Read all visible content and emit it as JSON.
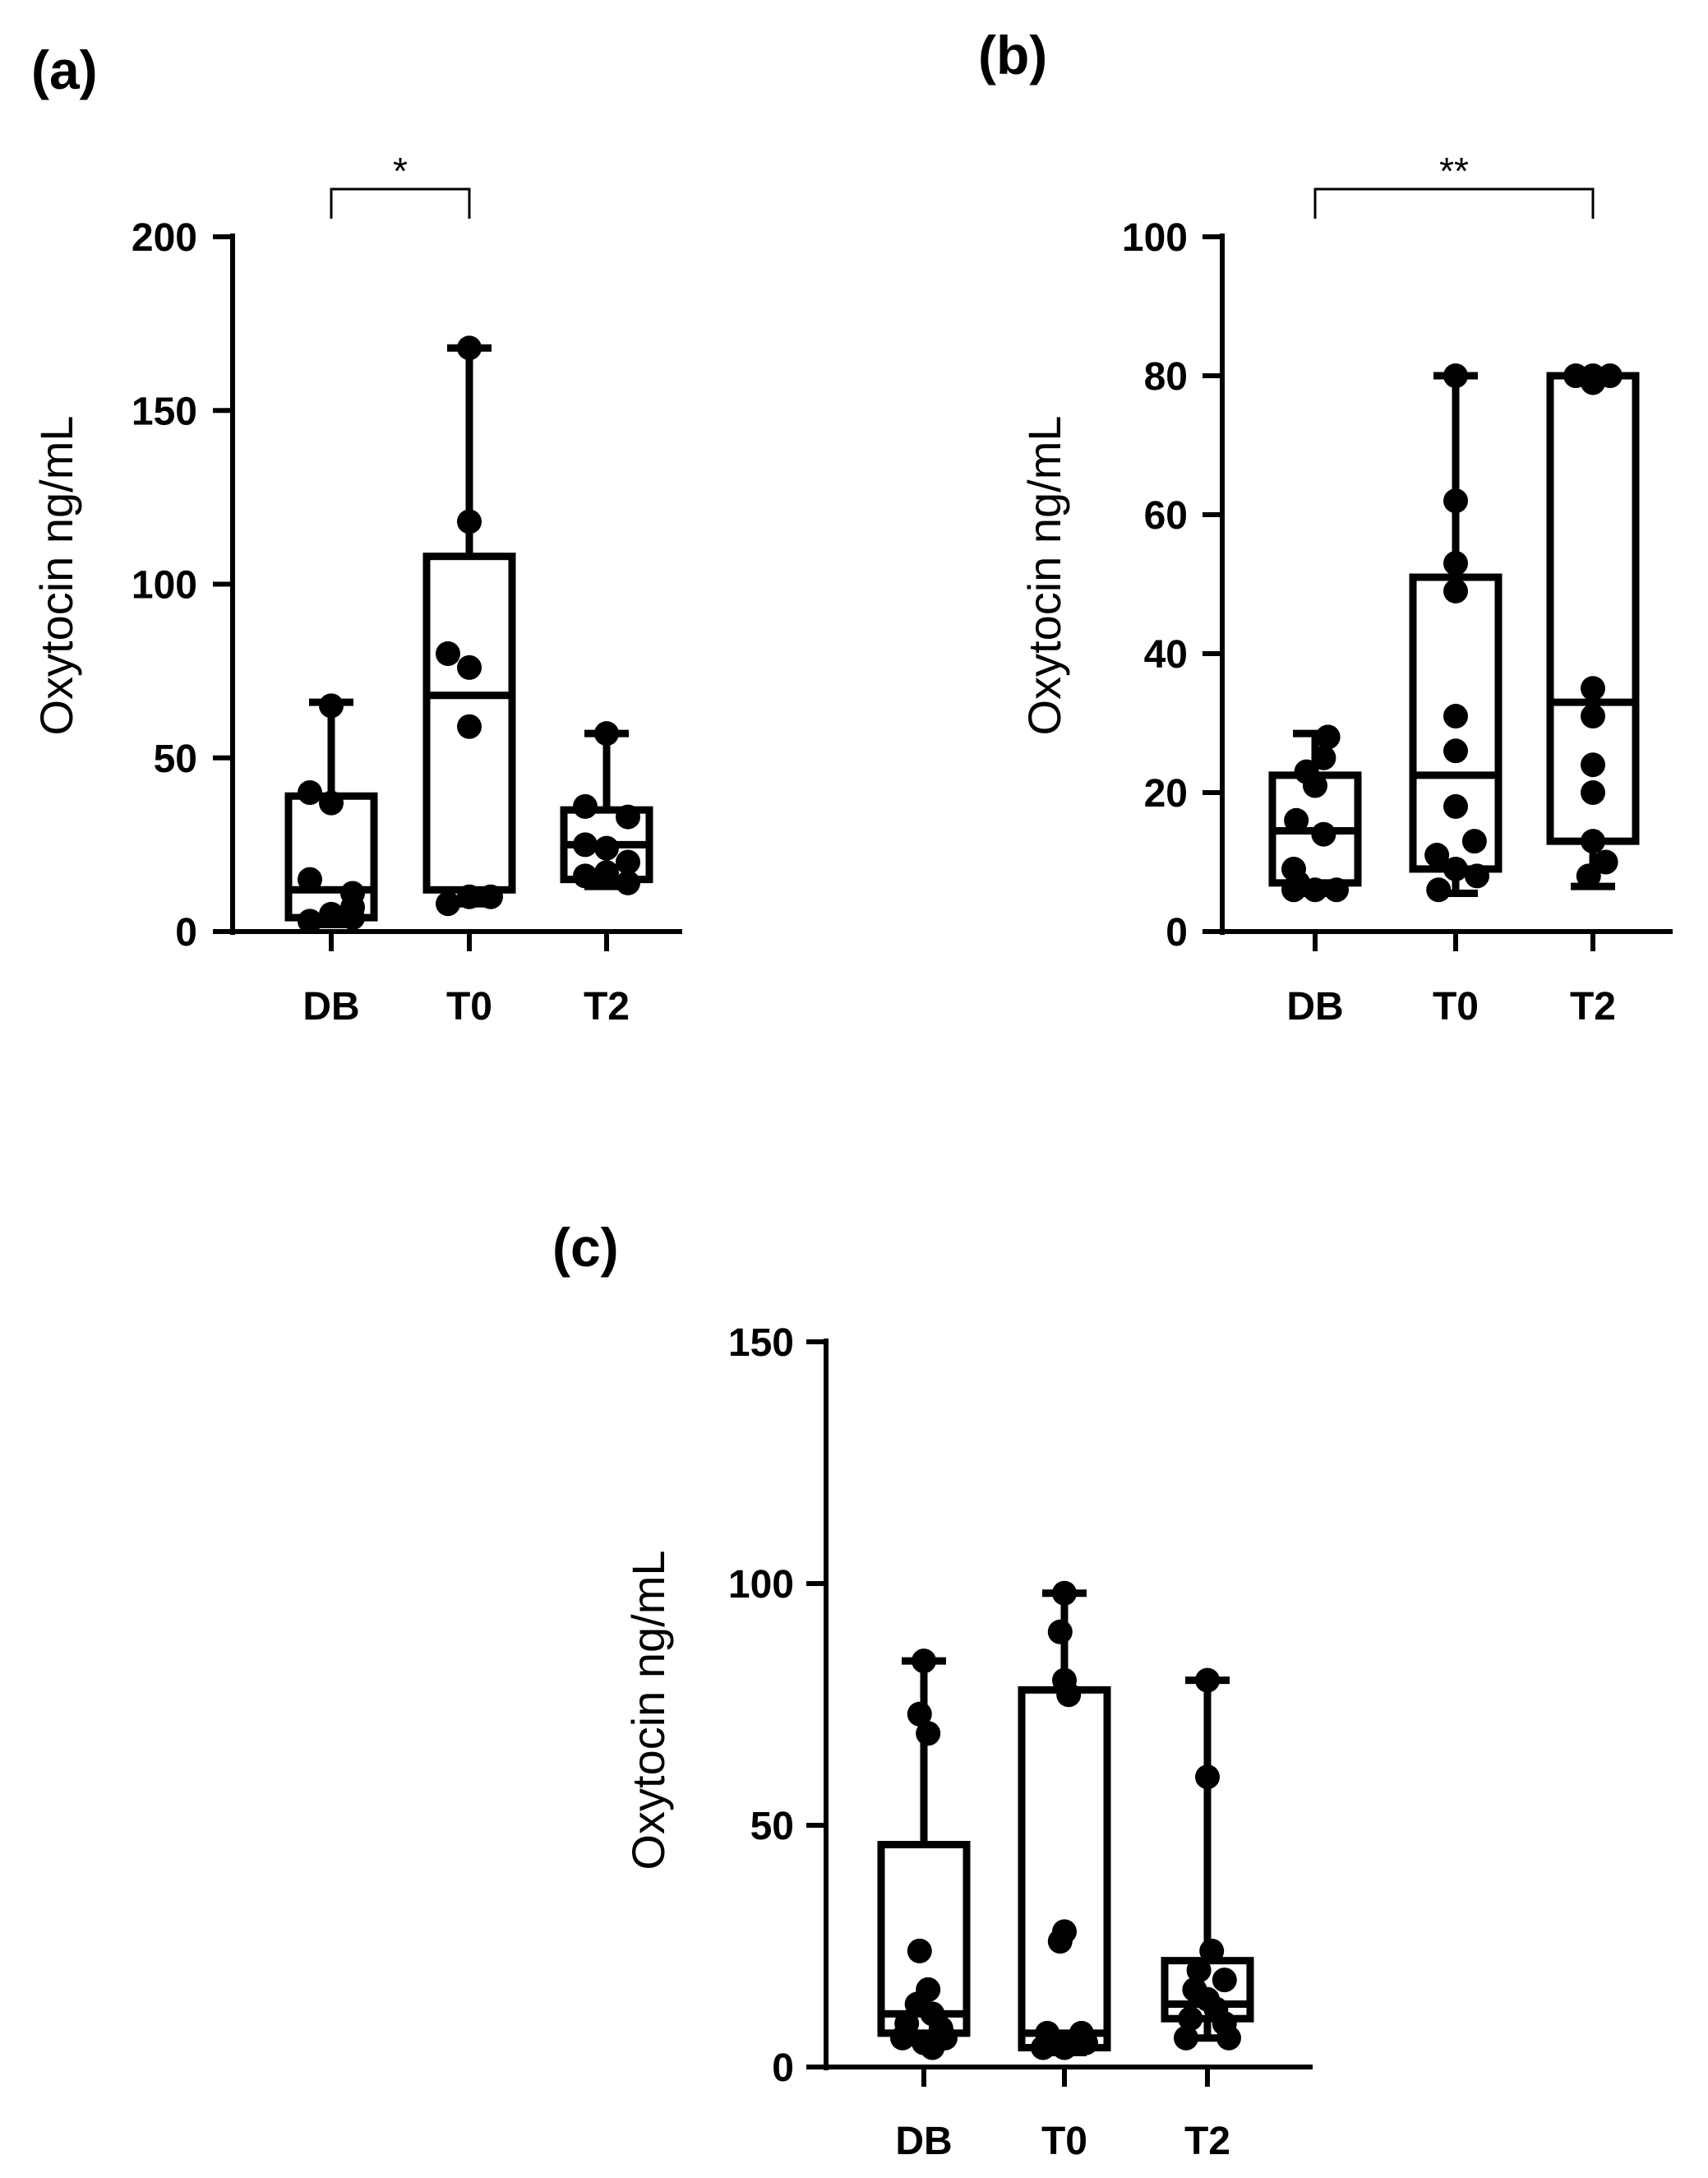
{
  "chart_data": [
    {
      "id": "a",
      "type": "box",
      "panel_label": "(a)",
      "title": "",
      "xlabel": "",
      "ylabel": "Oxytocin ng/mL",
      "ylim": [
        0,
        200
      ],
      "yticks": [
        0,
        50,
        100,
        150,
        200
      ],
      "categories": [
        "DB",
        "T0",
        "T2"
      ],
      "boxes": [
        {
          "category": "DB",
          "min": 2,
          "q1": 4,
          "median": 12,
          "q3": 39,
          "max": 66
        },
        {
          "category": "T0",
          "min": 8,
          "q1": 12,
          "median": 68,
          "q3": 108,
          "max": 168
        },
        {
          "category": "T2",
          "min": 13,
          "q1": 15,
          "median": 25,
          "q3": 35,
          "max": 57
        }
      ],
      "points": [
        {
          "category": "DB",
          "offset": 0.0,
          "value": 65
        },
        {
          "category": "DB",
          "offset": -0.25,
          "value": 40
        },
        {
          "category": "DB",
          "offset": -0.25,
          "value": 15
        },
        {
          "category": "DB",
          "offset": 0.0,
          "value": 37
        },
        {
          "category": "DB",
          "offset": 0.25,
          "value": 11
        },
        {
          "category": "DB",
          "offset": 0.25,
          "value": 7
        },
        {
          "category": "DB",
          "offset": -0.25,
          "value": 3
        },
        {
          "category": "DB",
          "offset": 0.0,
          "value": 5
        },
        {
          "category": "DB",
          "offset": 0.25,
          "value": 4
        },
        {
          "category": "T0",
          "offset": 0.0,
          "value": 168
        },
        {
          "category": "T0",
          "offset": 0.0,
          "value": 118
        },
        {
          "category": "T0",
          "offset": -0.25,
          "value": 80
        },
        {
          "category": "T0",
          "offset": 0.0,
          "value": 76
        },
        {
          "category": "T0",
          "offset": 0.0,
          "value": 59
        },
        {
          "category": "T0",
          "offset": -0.25,
          "value": 8
        },
        {
          "category": "T0",
          "offset": 0.25,
          "value": 10
        },
        {
          "category": "T0",
          "offset": 0.0,
          "value": 10
        },
        {
          "category": "T2",
          "offset": 0.0,
          "value": 57
        },
        {
          "category": "T2",
          "offset": -0.25,
          "value": 36
        },
        {
          "category": "T2",
          "offset": 0.25,
          "value": 33
        },
        {
          "category": "T2",
          "offset": -0.25,
          "value": 25
        },
        {
          "category": "T2",
          "offset": 0.0,
          "value": 24
        },
        {
          "category": "T2",
          "offset": 0.25,
          "value": 20
        },
        {
          "category": "T2",
          "offset": -0.25,
          "value": 16
        },
        {
          "category": "T2",
          "offset": 0.0,
          "value": 17
        },
        {
          "category": "T2",
          "offset": 0.25,
          "value": 14
        }
      ],
      "significance": [
        {
          "from": "DB",
          "to": "T0",
          "label": "*"
        }
      ]
    },
    {
      "id": "b",
      "type": "box",
      "panel_label": "(b)",
      "title": "",
      "xlabel": "",
      "ylabel": "Oxytocin ng/mL",
      "ylim": [
        0,
        100
      ],
      "yticks": [
        0,
        20,
        40,
        60,
        80,
        100
      ],
      "categories": [
        "DB",
        "T0",
        "T2"
      ],
      "boxes": [
        {
          "category": "DB",
          "min": 5.5,
          "q1": 7,
          "median": 14.5,
          "q3": 22.5,
          "max": 28.5
        },
        {
          "category": "T0",
          "min": 5.5,
          "q1": 9,
          "median": 22.5,
          "q3": 51,
          "max": 80
        },
        {
          "category": "T2",
          "min": 6.5,
          "q1": 13,
          "median": 33,
          "q3": 80,
          "max": 80
        }
      ],
      "points": [
        {
          "category": "DB",
          "offset": 0.15,
          "value": 28
        },
        {
          "category": "DB",
          "offset": 0.1,
          "value": 25
        },
        {
          "category": "DB",
          "offset": -0.1,
          "value": 23
        },
        {
          "category": "DB",
          "offset": 0.0,
          "value": 21
        },
        {
          "category": "DB",
          "offset": -0.22,
          "value": 16
        },
        {
          "category": "DB",
          "offset": 0.1,
          "value": 14
        },
        {
          "category": "DB",
          "offset": -0.25,
          "value": 9
        },
        {
          "category": "DB",
          "offset": -0.2,
          "value": 7
        },
        {
          "category": "DB",
          "offset": 0.0,
          "value": 6
        },
        {
          "category": "DB",
          "offset": 0.25,
          "value": 6
        },
        {
          "category": "DB",
          "offset": -0.25,
          "value": 6
        },
        {
          "category": "T0",
          "offset": 0.0,
          "value": 80
        },
        {
          "category": "T0",
          "offset": 0.0,
          "value": 62
        },
        {
          "category": "T0",
          "offset": 0.0,
          "value": 53
        },
        {
          "category": "T0",
          "offset": 0.0,
          "value": 49
        },
        {
          "category": "T0",
          "offset": 0.0,
          "value": 31
        },
        {
          "category": "T0",
          "offset": 0.0,
          "value": 26
        },
        {
          "category": "T0",
          "offset": 0.0,
          "value": 18
        },
        {
          "category": "T0",
          "offset": 0.22,
          "value": 13
        },
        {
          "category": "T0",
          "offset": -0.22,
          "value": 11
        },
        {
          "category": "T0",
          "offset": 0.0,
          "value": 9
        },
        {
          "category": "T0",
          "offset": -0.2,
          "value": 6
        },
        {
          "category": "T0",
          "offset": 0.25,
          "value": 8
        },
        {
          "category": "T2",
          "offset": -0.2,
          "value": 80
        },
        {
          "category": "T2",
          "offset": 0.0,
          "value": 80
        },
        {
          "category": "T2",
          "offset": 0.2,
          "value": 80
        },
        {
          "category": "T2",
          "offset": 0.0,
          "value": 79
        },
        {
          "category": "T2",
          "offset": 0.0,
          "value": 35
        },
        {
          "category": "T2",
          "offset": 0.0,
          "value": 31
        },
        {
          "category": "T2",
          "offset": 0.0,
          "value": 24
        },
        {
          "category": "T2",
          "offset": 0.0,
          "value": 20
        },
        {
          "category": "T2",
          "offset": 0.0,
          "value": 13
        },
        {
          "category": "T2",
          "offset": 0.15,
          "value": 10
        },
        {
          "category": "T2",
          "offset": -0.05,
          "value": 8
        }
      ],
      "significance": [
        {
          "from": "DB",
          "to": "T2",
          "label": "**"
        }
      ]
    },
    {
      "id": "c",
      "type": "box",
      "panel_label": "(c)",
      "title": "",
      "xlabel": "",
      "ylabel": "Oxytocin ng/mL",
      "ylim": [
        0,
        150
      ],
      "yticks": [
        0,
        50,
        100,
        150
      ],
      "categories": [
        "DB",
        "T0",
        "T2"
      ],
      "boxes": [
        {
          "category": "DB",
          "min": 5,
          "q1": 7,
          "median": 11,
          "q3": 46,
          "max": 84
        },
        {
          "category": "T0",
          "min": 3,
          "q1": 4,
          "median": 7,
          "q3": 78,
          "max": 98
        },
        {
          "category": "T2",
          "min": 6,
          "q1": 10,
          "median": 13,
          "q3": 22,
          "max": 80
        }
      ],
      "points": [
        {
          "category": "DB",
          "offset": 0.0,
          "value": 84
        },
        {
          "category": "DB",
          "offset": -0.05,
          "value": 73
        },
        {
          "category": "DB",
          "offset": 0.05,
          "value": 69
        },
        {
          "category": "DB",
          "offset": -0.05,
          "value": 24
        },
        {
          "category": "DB",
          "offset": 0.05,
          "value": 16
        },
        {
          "category": "DB",
          "offset": -0.08,
          "value": 13
        },
        {
          "category": "DB",
          "offset": 0.1,
          "value": 11
        },
        {
          "category": "DB",
          "offset": -0.2,
          "value": 9
        },
        {
          "category": "DB",
          "offset": 0.2,
          "value": 8
        },
        {
          "category": "DB",
          "offset": -0.25,
          "value": 6
        },
        {
          "category": "DB",
          "offset": 0.0,
          "value": 5
        },
        {
          "category": "DB",
          "offset": 0.25,
          "value": 6
        },
        {
          "category": "DB",
          "offset": 0.1,
          "value": 4
        },
        {
          "category": "T0",
          "offset": 0.0,
          "value": 98
        },
        {
          "category": "T0",
          "offset": -0.05,
          "value": 90
        },
        {
          "category": "T0",
          "offset": 0.0,
          "value": 80
        },
        {
          "category": "T0",
          "offset": 0.05,
          "value": 77
        },
        {
          "category": "T0",
          "offset": 0.0,
          "value": 28
        },
        {
          "category": "T0",
          "offset": -0.05,
          "value": 26
        },
        {
          "category": "T0",
          "offset": -0.2,
          "value": 7
        },
        {
          "category": "T0",
          "offset": 0.2,
          "value": 7
        },
        {
          "category": "T0",
          "offset": -0.25,
          "value": 4
        },
        {
          "category": "T0",
          "offset": 0.0,
          "value": 4
        },
        {
          "category": "T0",
          "offset": 0.25,
          "value": 5
        },
        {
          "category": "T2",
          "offset": 0.0,
          "value": 80
        },
        {
          "category": "T2",
          "offset": 0.0,
          "value": 60
        },
        {
          "category": "T2",
          "offset": 0.05,
          "value": 24
        },
        {
          "category": "T2",
          "offset": -0.1,
          "value": 20
        },
        {
          "category": "T2",
          "offset": 0.2,
          "value": 18
        },
        {
          "category": "T2",
          "offset": -0.15,
          "value": 16
        },
        {
          "category": "T2",
          "offset": 0.0,
          "value": 14
        },
        {
          "category": "T2",
          "offset": 0.1,
          "value": 12
        },
        {
          "category": "T2",
          "offset": -0.2,
          "value": 10
        },
        {
          "category": "T2",
          "offset": 0.2,
          "value": 9
        },
        {
          "category": "T2",
          "offset": -0.25,
          "value": 6
        },
        {
          "category": "T2",
          "offset": 0.25,
          "value": 6
        }
      ],
      "significance": []
    }
  ]
}
